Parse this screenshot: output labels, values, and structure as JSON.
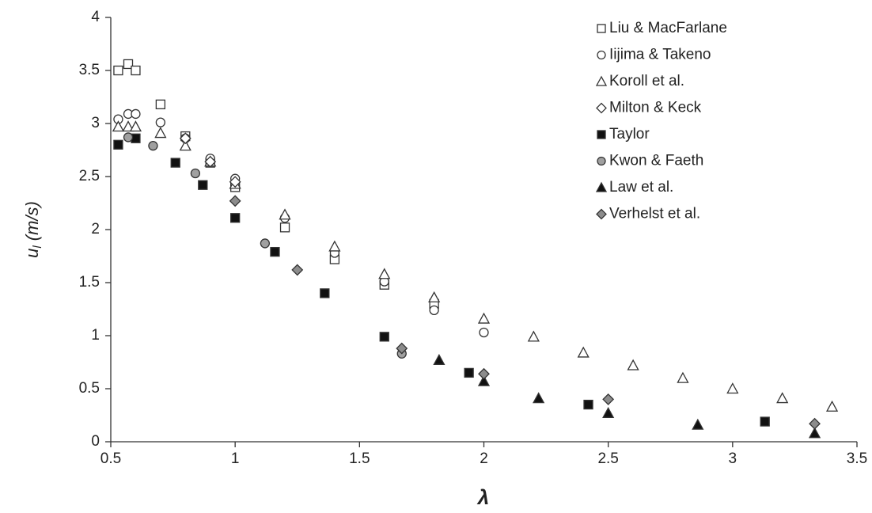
{
  "chart_data": {
    "type": "scatter",
    "xlabel": "λ",
    "ylabel": [
      "u",
      "l",
      "(m/s)"
    ],
    "xlim": [
      0.5,
      3.5
    ],
    "xticks": [
      0.5,
      1,
      1.5,
      2,
      2.5,
      3,
      3.5
    ],
    "ylim": [
      0,
      4
    ],
    "yticks": [
      0,
      0.5,
      1,
      1.5,
      2,
      2.5,
      3,
      3.5,
      4
    ],
    "legend": "top-right",
    "series": [
      {
        "name": "Liu & MacFarlane",
        "marker": "square",
        "color": "#ffffff",
        "x": [
          0.53,
          0.57,
          0.6,
          0.7,
          0.8,
          0.9,
          1.0,
          1.2,
          1.4,
          1.6,
          1.8
        ],
        "values": [
          3.5,
          3.56,
          3.5,
          3.18,
          2.88,
          2.63,
          2.4,
          2.02,
          1.72,
          1.48,
          1.3
        ]
      },
      {
        "name": "Iijima & Takeno",
        "marker": "circle",
        "color": "#ffffff",
        "x": [
          0.53,
          0.57,
          0.6,
          0.7,
          0.8,
          0.9,
          1.0,
          1.2,
          1.4,
          1.6,
          1.8,
          2.0
        ],
        "values": [
          3.04,
          3.09,
          3.09,
          3.01,
          2.86,
          2.67,
          2.48,
          2.11,
          1.78,
          1.51,
          1.24,
          1.03
        ]
      },
      {
        "name": "Koroll et al.",
        "marker": "triangle",
        "color": "#ffffff",
        "x": [
          0.53,
          0.57,
          0.6,
          0.7,
          0.8,
          0.9,
          1.0,
          1.2,
          1.4,
          1.6,
          1.8,
          2.0,
          2.2,
          2.4,
          2.6,
          2.8,
          3.0,
          3.2,
          3.4
        ],
        "values": [
          2.97,
          2.97,
          2.97,
          2.91,
          2.79,
          2.64,
          2.43,
          2.14,
          1.84,
          1.58,
          1.36,
          1.16,
          0.99,
          0.84,
          0.72,
          0.6,
          0.5,
          0.41,
          0.33
        ]
      },
      {
        "name": "Milton & Keck",
        "marker": "diamond",
        "color": "#ffffff",
        "x": [
          0.8,
          0.9,
          1.0
        ],
        "values": [
          2.86,
          2.64,
          2.45
        ]
      },
      {
        "name": "Taylor",
        "marker": "square",
        "color": "#111111",
        "x": [
          0.53,
          0.6,
          0.76,
          0.87,
          1.0,
          1.16,
          1.36,
          1.6,
          1.94,
          2.42,
          3.13
        ],
        "values": [
          2.8,
          2.86,
          2.63,
          2.42,
          2.11,
          1.79,
          1.4,
          0.99,
          0.65,
          0.35,
          0.19
        ]
      },
      {
        "name": "Kwon & Faeth",
        "marker": "circle",
        "color": "#a0a0a0",
        "x": [
          0.57,
          0.67,
          0.84,
          1.12,
          1.67
        ],
        "values": [
          2.87,
          2.79,
          2.53,
          1.87,
          0.83
        ]
      },
      {
        "name": "Law et al.",
        "marker": "triangle",
        "color": "#111111",
        "x": [
          1.82,
          2.0,
          2.22,
          2.5,
          2.86,
          3.33
        ],
        "values": [
          0.77,
          0.57,
          0.41,
          0.27,
          0.16,
          0.08
        ]
      },
      {
        "name": "Verhelst et al.",
        "marker": "diamond",
        "color": "#8c8c8c",
        "x": [
          1.0,
          1.25,
          1.67,
          2.0,
          2.5,
          3.33
        ],
        "values": [
          2.27,
          1.62,
          0.88,
          0.64,
          0.4,
          0.17
        ]
      }
    ]
  }
}
